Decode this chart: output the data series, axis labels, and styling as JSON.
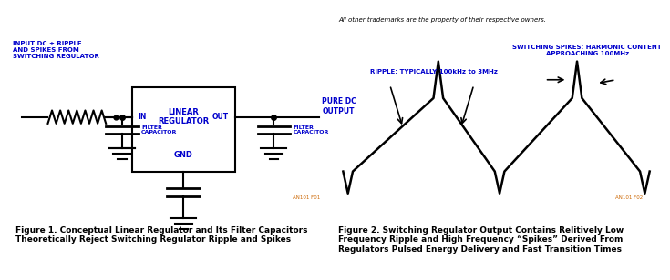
{
  "fig1_caption": "Figure 1. Conceptual Linear Regulator and Its Filter Capacitors\nTheoretically Reject Switching Regulator Ripple and Spikes",
  "fig2_caption": "Figure 2. Switching Regulator Output Contains Relitively Low\nFrequency Ripple and High Frequency “Spikes” Derived From\nRegulators Pulsed Energy Delivery and Fast Transition Times",
  "top_text": "All other trademarks are the property of their respective owners.",
  "label_input": "INPUT DC + RIPPLE\nAND SPIKES FROM\nSWITCHING REGULATOR",
  "label_in": "IN",
  "label_out": "OUT",
  "label_linear": "LINEAR\nREGULATOR",
  "label_gnd": "GND",
  "label_pure_dc": "PURE DC\nOUTPUT",
  "label_filter_cap1": "FILTER\nCAPACITOR",
  "label_filter_cap2": "FILTER\nCAPACITOR",
  "label_fig1_id": "AN101 F01",
  "label_fig2_id": "AN101 F02",
  "label_ripple": "RIPPLE: TYPICALLY 100kHz to 3MHz",
  "label_spikes": "SWITCHING SPIKES: HARMONIC CONTENT\nAPPROACHING 100MHz",
  "color_text": "#0000CC",
  "color_black": "#000000",
  "color_orange": "#CC6600",
  "color_caption": "#000000",
  "background": "#FFFFFF"
}
